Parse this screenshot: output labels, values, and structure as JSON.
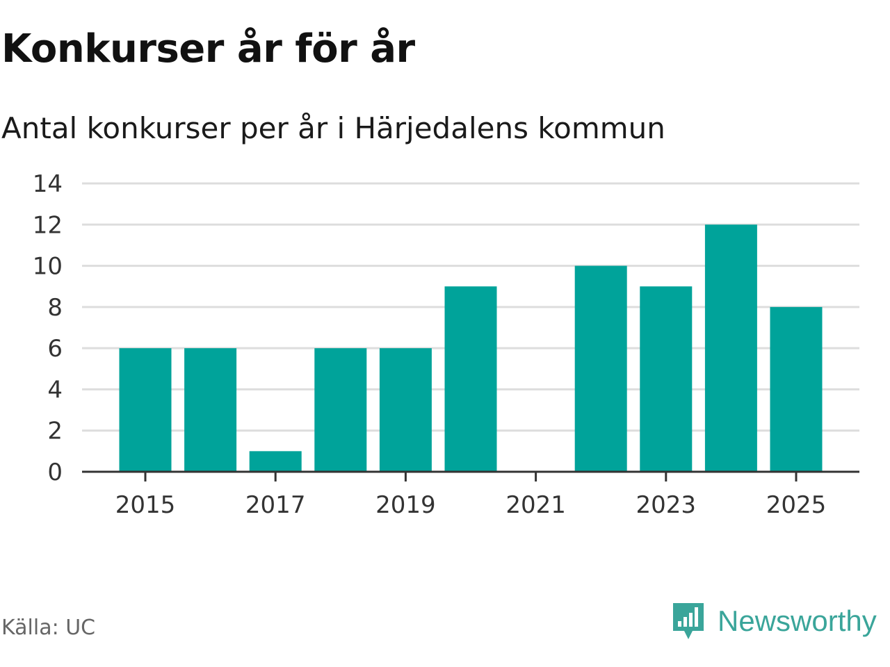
{
  "header": {
    "title": "Konkurser år för år",
    "subtitle": "Antal konkurser per år i Härjedalens kommun"
  },
  "footer": {
    "source": "Källa: UC",
    "brand": "Newsworthy",
    "brand_icon": "newsworthy-logo-icon"
  },
  "colors": {
    "bar": "#00a39a",
    "grid": "#dddddd",
    "axis": "#333333",
    "brand": "#3aa59a"
  },
  "chart_data": {
    "type": "bar",
    "categories": [
      "2015",
      "2016",
      "2017",
      "2018",
      "2019",
      "2020",
      "2021",
      "2022",
      "2023",
      "2024",
      "2025"
    ],
    "values": [
      6,
      6,
      1,
      6,
      6,
      9,
      0,
      10,
      9,
      12,
      8
    ],
    "x_tick_labels": [
      "2015",
      "2017",
      "2019",
      "2021",
      "2023",
      "2025"
    ],
    "y_ticks": [
      0,
      2,
      4,
      6,
      8,
      10,
      12,
      14
    ],
    "ylim": [
      0,
      14
    ],
    "grid": true,
    "legend": "none"
  }
}
